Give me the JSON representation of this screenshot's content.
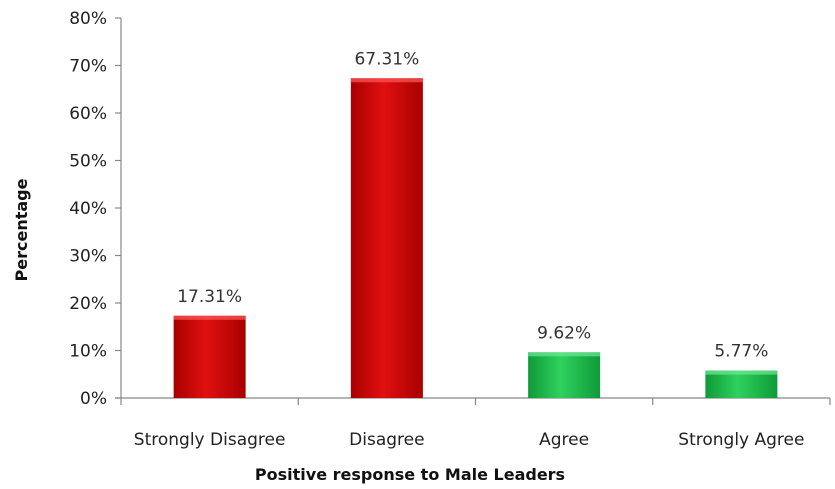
{
  "chart_data": {
    "type": "bar",
    "title": "",
    "xlabel": "Positive response to Male Leaders",
    "ylabel": "Percentage",
    "categories": [
      "Strongly Disagree",
      "Disagree",
      "Agree",
      "Strongly Agree"
    ],
    "values": [
      17.31,
      67.31,
      9.62,
      5.77
    ],
    "data_labels": [
      "17.31%",
      "67.31%",
      "9.62%",
      "5.77%"
    ],
    "bar_colors": [
      "#cc0000",
      "#cc0000",
      "#1db34a",
      "#1db34a"
    ],
    "ylim": [
      0,
      80
    ],
    "yticks": [
      0,
      10,
      20,
      30,
      40,
      50,
      60,
      70,
      80
    ],
    "ytick_labels": [
      "0%",
      "10%",
      "20%",
      "30%",
      "40%",
      "50%",
      "60%",
      "70%",
      "80%"
    ],
    "grid": false,
    "legend": "none"
  }
}
